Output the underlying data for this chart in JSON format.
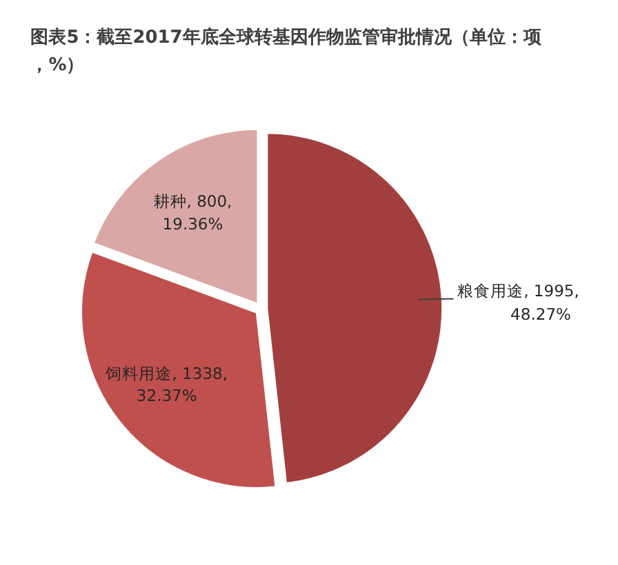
{
  "chart_data": {
    "type": "pie",
    "title": "图表5：截至2017年底全球转基因作物监管审批情况（单位：项，%）",
    "categories": [
      "粮食用途",
      "饲料用途",
      "耕种"
    ],
    "values": [
      1995,
      1338,
      800
    ],
    "colors": [
      "#a23f3e",
      "#c0504d",
      "#d9a8a6"
    ],
    "value_labels": [
      "1995, 48.27%",
      "1338, 32.37%",
      "800, 19.36%"
    ],
    "legend": false
  }
}
